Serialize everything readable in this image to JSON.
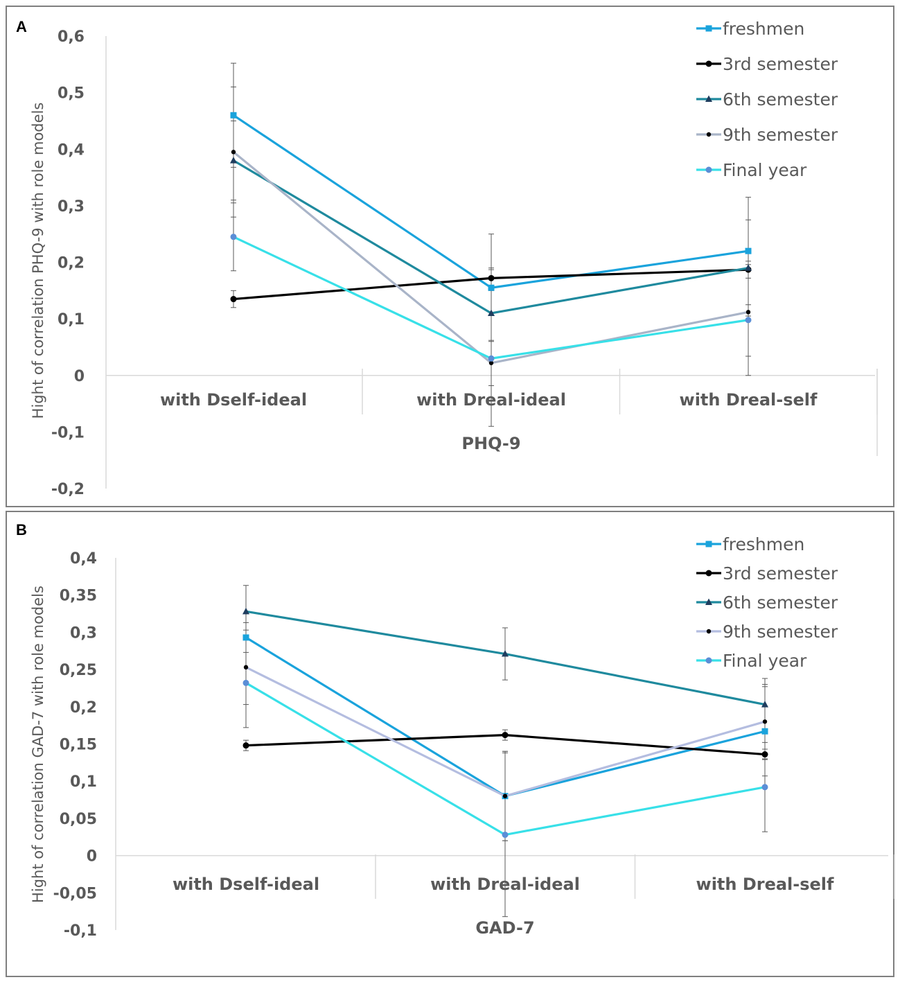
{
  "chart_data": [
    {
      "panel": "A",
      "type": "line",
      "xlabel": "PHQ-9",
      "ylabel": "Hight  of correlation  PHQ-9 with  role models",
      "categories": [
        "with Dself-ideal",
        "with Dreal-ideal",
        "with Dreal-self"
      ],
      "ylim": [
        -0.2,
        0.6
      ],
      "yticks": [
        0.6,
        0.5,
        0.4,
        0.3,
        0.2,
        0.1,
        0,
        -0.1,
        -0.2
      ],
      "ytick_labels": [
        "0,6",
        "0,5",
        "0,4",
        "0,3",
        "0,2",
        "0,1",
        "0",
        "-0,1",
        "-0,2"
      ],
      "series": [
        {
          "name": "freshmen",
          "color": "#1aa3dc",
          "marker": "square",
          "values": [
            0.46,
            0.155,
            0.22
          ],
          "errors": [
            0.092,
            0.095,
            0.095
          ]
        },
        {
          "name": "3rd semester",
          "color": "#000000",
          "marker": "circle",
          "values": [
            0.135,
            0.172,
            0.187
          ],
          "errors": [
            0.015,
            0.015,
            0.015
          ]
        },
        {
          "name": "6th semester",
          "color": "#1f8a9e",
          "marker": "triangle",
          "values": [
            0.38,
            0.11,
            0.19
          ],
          "errors": [
            0.07,
            0.08,
            0.085
          ]
        },
        {
          "name": "9th semester",
          "color": "#a9b4c8",
          "marker": "dot",
          "values": [
            0.395,
            0.022,
            0.112
          ],
          "errors": [
            0.115,
            0.04,
            0.078
          ]
        },
        {
          "name": "Final year",
          "color": "#38e0e8",
          "marker": "circle",
          "values": [
            0.245,
            0.03,
            0.098
          ],
          "errors": [
            0.06,
            0.12,
            0.098
          ]
        }
      ]
    },
    {
      "panel": "B",
      "type": "line",
      "xlabel": "GAD-7",
      "ylabel": "Hight  of correlation  GAD-7  with role models",
      "categories": [
        "with Dself-ideal",
        "with Dreal-ideal",
        "with Dreal-self"
      ],
      "ylim": [
        -0.1,
        0.4
      ],
      "yticks": [
        0.4,
        0.35,
        0.3,
        0.25,
        0.2,
        0.15,
        0.1,
        0.05,
        0,
        -0.05,
        -0.1
      ],
      "ytick_labels": [
        "0,4",
        "0,35",
        "0,3",
        "0,25",
        "0,2",
        "0,15",
        "0,1",
        "0,05",
        "0",
        "-0,05",
        "-0,1"
      ],
      "series": [
        {
          "name": "freshmen",
          "color": "#1aa3dc",
          "marker": "square",
          "values": [
            0.293,
            0.08,
            0.167
          ],
          "errors": [
            0.02,
            0.06,
            0.06
          ]
        },
        {
          "name": "3rd semester",
          "color": "#000000",
          "marker": "circle",
          "values": [
            0.148,
            0.162,
            0.136
          ],
          "errors": [
            0.007,
            0.007,
            0.007
          ]
        },
        {
          "name": "6th semester",
          "color": "#1f8a9e",
          "marker": "triangle",
          "values": [
            0.328,
            0.271,
            0.203
          ],
          "errors": [
            0.035,
            0.035,
            0.035
          ]
        },
        {
          "name": "9th semester",
          "color": "#b4bde0",
          "marker": "dot",
          "values": [
            0.253,
            0.08,
            0.18
          ],
          "errors": [
            0.05,
            0.06,
            0.05
          ]
        },
        {
          "name": "Final year",
          "color": "#38e0e8",
          "marker": "circle",
          "values": [
            0.232,
            0.028,
            0.092
          ],
          "errors": [
            0.06,
            0.11,
            0.06
          ]
        }
      ]
    }
  ]
}
